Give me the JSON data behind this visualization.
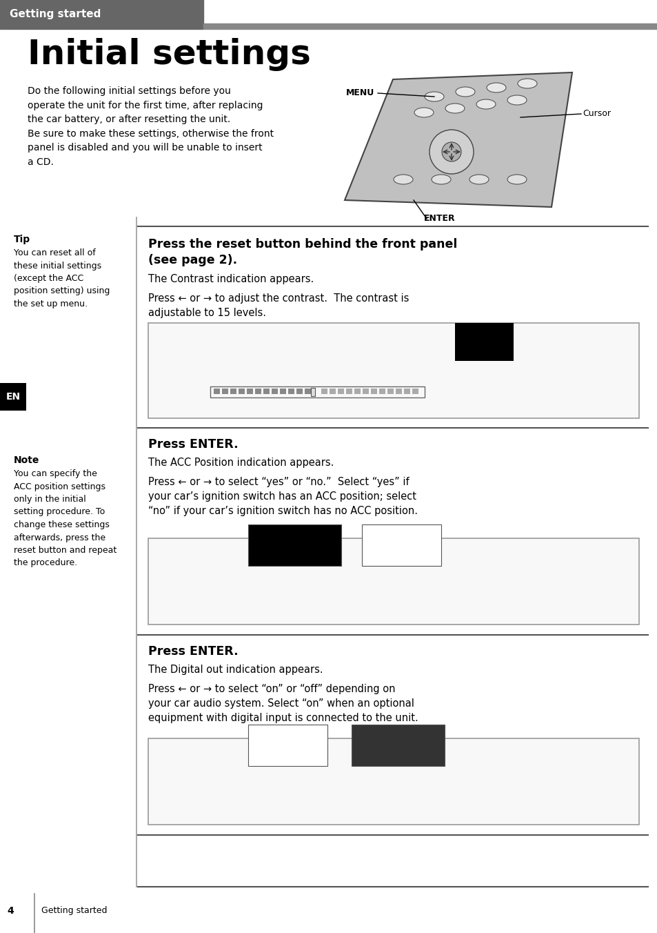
{
  "bg_color": "#ffffff",
  "header_bg": "#6b6b6b",
  "header_text": "Getting started",
  "header_text_color": "#ffffff",
  "title": "Initial settings",
  "intro_text": "Do the following initial settings before you\noperate the unit for the first time, after replacing\nthe car battery, or after resetting the unit.\nBe sure to make these settings, otherwise the front\npanel is disabled and you will be unable to insert\na CD.",
  "tip_label": "Tip",
  "tip_text": "You can reset all of\nthese initial settings\n(except the ACC\nposition setting) using\nthe set up menu.",
  "note_label": "Note",
  "note_text": "You can specify the\nACC position settings\nonly in the initial\nsetting procedure. To\nchange these settings\nafterwards, press the\nreset button and repeat\nthe procedure.",
  "en_label": "EN",
  "section1_title": "Press the reset button behind the front panel\n(see page 2).",
  "section1_sub": "The Contrast indication appears.",
  "section1_body": "Press ← or → to adjust the contrast.  The contrast is\nadjustable to 15 levels.",
  "section2_title": "Press ENTER.",
  "section2_sub": "The ACC Position indication appears.",
  "section2_body": "Press ← or → to select “yes” or “no.”  Select “yes” if\nyour car’s ignition switch has an ACC position; select\n“no” if your car’s ignition switch has no ACC position.",
  "section3_title": "Press ENTER.",
  "section3_sub": "The Digital out indication appears.",
  "section3_body": "Press ← or → to select “on” or “off” depending on\nyour car audio system. Select “on” when an optional\nequipment with digital input is connected to the unit.",
  "menu_label": "MENU",
  "cursor_label": "Cursor",
  "enter_label": "ENTER",
  "page_num": "4",
  "footer_label": "Getting started"
}
